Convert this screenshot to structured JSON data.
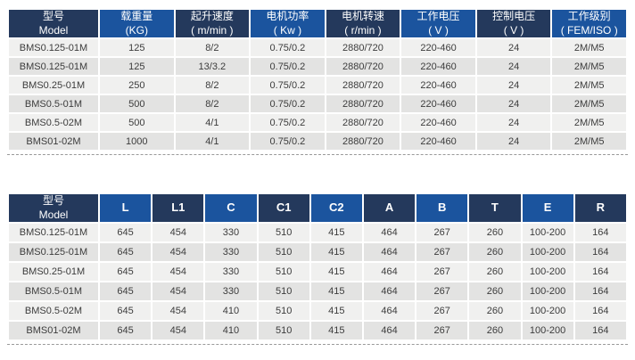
{
  "colors": {
    "header_dark_navy": "#24395c",
    "header_bright_blue": "#1b549e",
    "row_light_gray": "#f0f0ef",
    "row_dark_gray": "#e3e3e2",
    "body_text": "#3c3c3c",
    "dashed_divider": "#9a9a9a"
  },
  "tables": [
    {
      "name": "performance-spec-table",
      "headers": [
        {
          "line1": "型号",
          "line2": "Model"
        },
        {
          "line1": "载重量",
          "line2": "(KG)"
        },
        {
          "line1": "起升速度",
          "line2": "( m/min )"
        },
        {
          "line1": "电机功率",
          "line2": "( Kw )"
        },
        {
          "line1": "电机转速",
          "line2": "( r/min )"
        },
        {
          "line1": "工作电压",
          "line2": "( V )"
        },
        {
          "line1": "控制电压",
          "line2": "( V )"
        },
        {
          "line1": "工作级别",
          "line2": "( FEM/ISO )"
        }
      ],
      "rows": [
        [
          "BMS0.125-01M",
          "125",
          "8/2",
          "0.75/0.2",
          "2880/720",
          "220-460",
          "24",
          "2M/M5"
        ],
        [
          "BMS0.125-01M",
          "125",
          "13/3.2",
          "0.75/0.2",
          "2880/720",
          "220-460",
          "24",
          "2M/M5"
        ],
        [
          "BMS0.25-01M",
          "250",
          "8/2",
          "0.75/0.2",
          "2880/720",
          "220-460",
          "24",
          "2M/M5"
        ],
        [
          "BMS0.5-01M",
          "500",
          "8/2",
          "0.75/0.2",
          "2880/720",
          "220-460",
          "24",
          "2M/M5"
        ],
        [
          "BMS0.5-02M",
          "500",
          "4/1",
          "0.75/0.2",
          "2880/720",
          "220-460",
          "24",
          "2M/M5"
        ],
        [
          "BMS01-02M",
          "1000",
          "4/1",
          "0.75/0.2",
          "2880/720",
          "220-460",
          "24",
          "2M/M5"
        ]
      ]
    },
    {
      "name": "dimension-table",
      "headers": [
        {
          "line1": "型号",
          "line2": "Model"
        },
        {
          "line1": "L"
        },
        {
          "line1": "L1"
        },
        {
          "line1": "C"
        },
        {
          "line1": "C1"
        },
        {
          "line1": "C2"
        },
        {
          "line1": "A"
        },
        {
          "line1": "B"
        },
        {
          "line1": "T"
        },
        {
          "line1": "E"
        },
        {
          "line1": "R"
        }
      ],
      "rows": [
        [
          "BMS0.125-01M",
          "645",
          "454",
          "330",
          "510",
          "415",
          "464",
          "267",
          "260",
          "100-200",
          "164"
        ],
        [
          "BMS0.125-01M",
          "645",
          "454",
          "330",
          "510",
          "415",
          "464",
          "267",
          "260",
          "100-200",
          "164"
        ],
        [
          "BMS0.25-01M",
          "645",
          "454",
          "330",
          "510",
          "415",
          "464",
          "267",
          "260",
          "100-200",
          "164"
        ],
        [
          "BMS0.5-01M",
          "645",
          "454",
          "330",
          "510",
          "415",
          "464",
          "267",
          "260",
          "100-200",
          "164"
        ],
        [
          "BMS0.5-02M",
          "645",
          "454",
          "410",
          "510",
          "415",
          "464",
          "267",
          "260",
          "100-200",
          "164"
        ],
        [
          "BMS01-02M",
          "645",
          "454",
          "410",
          "510",
          "415",
          "464",
          "267",
          "260",
          "100-200",
          "164"
        ]
      ]
    }
  ]
}
